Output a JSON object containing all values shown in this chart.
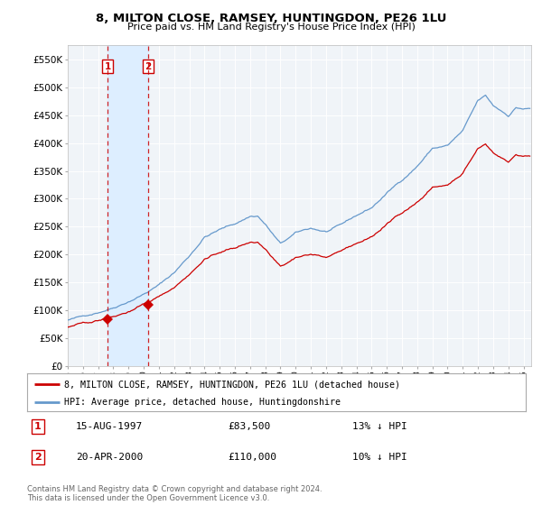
{
  "title": "8, MILTON CLOSE, RAMSEY, HUNTINGDON, PE26 1LU",
  "subtitle": "Price paid vs. HM Land Registry's House Price Index (HPI)",
  "legend_label_red": "8, MILTON CLOSE, RAMSEY, HUNTINGDON, PE26 1LU (detached house)",
  "legend_label_blue": "HPI: Average price, detached house, Huntingdonshire",
  "annotation1_date": "15-AUG-1997",
  "annotation1_price": "£83,500",
  "annotation1_hpi": "13% ↓ HPI",
  "annotation2_date": "20-APR-2000",
  "annotation2_price": "£110,000",
  "annotation2_hpi": "10% ↓ HPI",
  "copyright": "Contains HM Land Registry data © Crown copyright and database right 2024.\nThis data is licensed under the Open Government Licence v3.0.",
  "ylim": [
    0,
    575000
  ],
  "xlim_start": 1995.0,
  "xlim_end": 2025.5,
  "sale1_x": 1997.62,
  "sale1_y": 83500,
  "sale2_x": 2000.3,
  "sale2_y": 110000,
  "red_color": "#cc0000",
  "blue_color": "#6699cc",
  "vline_color": "#cc0000",
  "band_color": "#ddeeff",
  "background_color": "#ffffff",
  "plot_bg_color": "#f0f4f8"
}
